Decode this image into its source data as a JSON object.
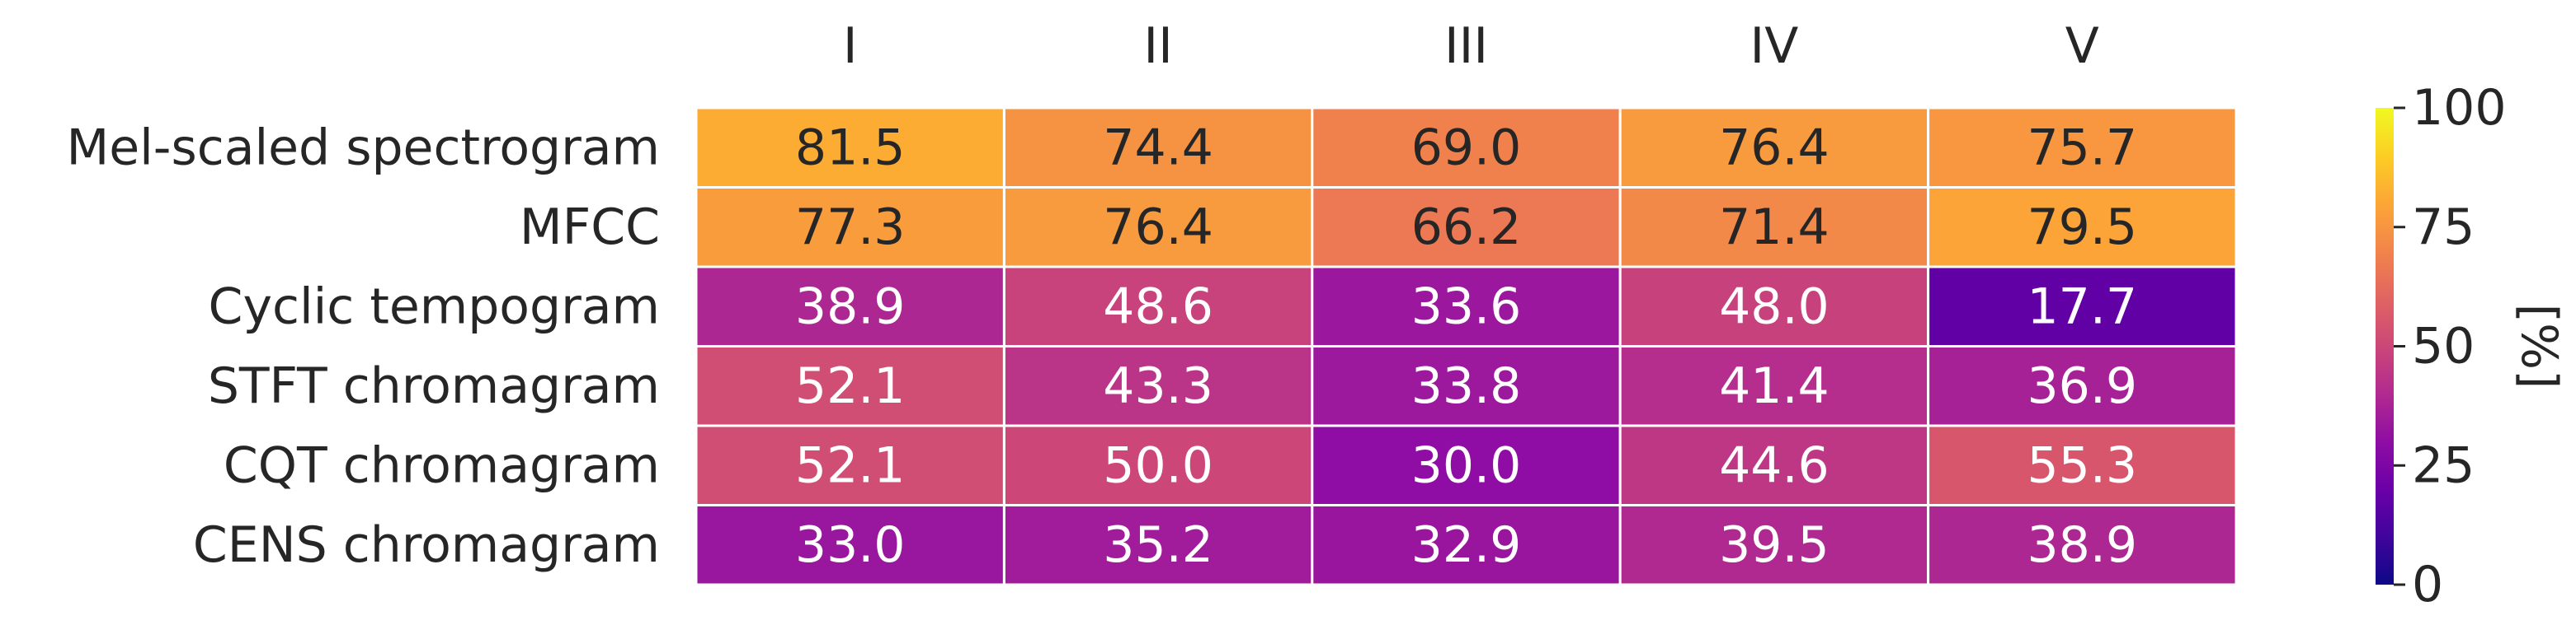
{
  "chart_data": {
    "type": "heatmap",
    "columns": [
      "I",
      "II",
      "III",
      "IV",
      "V"
    ],
    "rows": [
      "Mel-scaled spectrogram",
      "MFCC",
      "Cyclic tempogram",
      "STFT chromagram",
      "CQT chromagram",
      "CENS chromagram"
    ],
    "values": [
      [
        81.5,
        74.4,
        69.0,
        76.4,
        75.7
      ],
      [
        77.3,
        76.4,
        66.2,
        71.4,
        79.5
      ],
      [
        38.9,
        48.6,
        33.6,
        48.0,
        17.7
      ],
      [
        52.1,
        43.3,
        33.8,
        41.4,
        36.9
      ],
      [
        52.1,
        50.0,
        30.0,
        44.6,
        55.3
      ],
      [
        33.0,
        35.2,
        32.9,
        39.5,
        38.9
      ]
    ],
    "cell_text": [
      [
        "81.5",
        "74.4",
        "69.0",
        "76.4",
        "75.7"
      ],
      [
        "77.3",
        "76.4",
        "66.2",
        "71.4",
        "79.5"
      ],
      [
        "38.9",
        "48.6",
        "33.6",
        "48.0",
        "17.7"
      ],
      [
        "52.1",
        "43.3",
        "33.8",
        "41.4",
        "36.9"
      ],
      [
        "52.1",
        "50.0",
        "30.0",
        "44.6",
        "55.3"
      ],
      [
        "33.0",
        "35.2",
        "32.9",
        "39.5",
        "38.9"
      ]
    ],
    "colormap": "plasma",
    "vmin": 0,
    "vmax": 100,
    "colorbar": {
      "ticks": [
        0,
        25,
        50,
        75,
        100
      ],
      "tick_labels": [
        "0",
        "25",
        "50",
        "75",
        "100"
      ],
      "label": "[%]"
    },
    "column_label_position": "top"
  }
}
